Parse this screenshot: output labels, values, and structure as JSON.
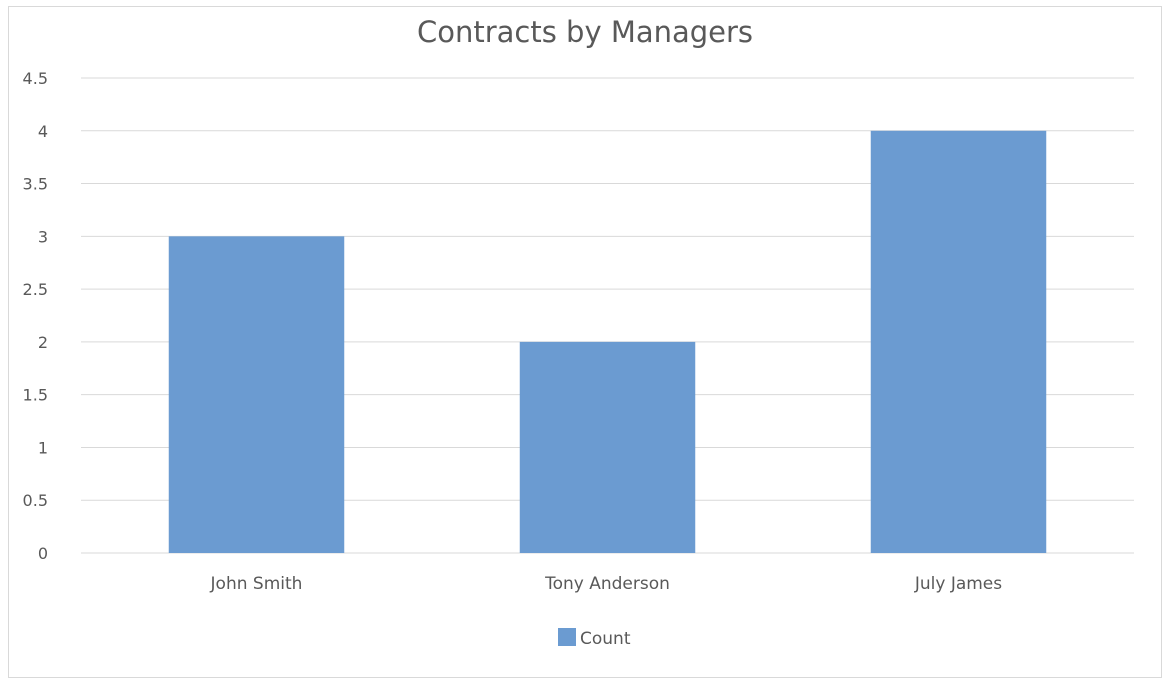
{
  "chart_data": {
    "type": "bar",
    "title": "Contracts by Managers",
    "categories": [
      "John Smith",
      "Tony Anderson",
      "July James"
    ],
    "series": [
      {
        "name": "Count",
        "values": [
          3,
          2,
          4
        ],
        "color": "#6b9bd1"
      }
    ],
    "ylim": [
      0,
      4.5
    ],
    "yticks": [
      "0",
      "0.5",
      "1",
      "1.5",
      "2",
      "2.5",
      "3",
      "3.5",
      "4",
      "4.5"
    ],
    "grid": true,
    "legend_position": "bottom"
  }
}
